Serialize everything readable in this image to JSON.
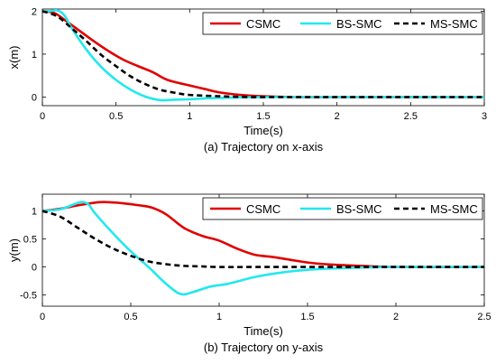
{
  "chart_data": [
    {
      "type": "line",
      "caption": "(a) Trajectory on x-axis",
      "xlabel": "Time(s)",
      "ylabel": "x(m)",
      "xlim": [
        0,
        3
      ],
      "ylim": [
        -0.2,
        2.05
      ],
      "xticks": [
        "0",
        "0.5",
        "1",
        "1.5",
        "2",
        "2.5",
        "3"
      ],
      "xtick_values": [
        0,
        0.5,
        1,
        1.5,
        2,
        2.5,
        3
      ],
      "yticks": [
        "0",
        "1",
        "2"
      ],
      "ytick_values": [
        0,
        1,
        2
      ],
      "grid": false,
      "legend_placement": "top-right-horizontal",
      "series": [
        {
          "name": "CSMC",
          "color": "#e00000",
          "style": "solid",
          "x": [
            0,
            0.08,
            0.15,
            0.25,
            0.35,
            0.45,
            0.55,
            0.65,
            0.75,
            0.85,
            1.0,
            1.1,
            1.2,
            1.35,
            1.5,
            1.7,
            2.0,
            2.5,
            3.0
          ],
          "y": [
            2.0,
            1.96,
            1.8,
            1.55,
            1.3,
            1.07,
            0.87,
            0.72,
            0.58,
            0.4,
            0.27,
            0.19,
            0.11,
            0.05,
            0.02,
            0.0,
            0.0,
            0.0,
            0.0
          ]
        },
        {
          "name": "BS-SMC",
          "color": "#22e8ee",
          "style": "solid",
          "x": [
            0,
            0.05,
            0.1,
            0.15,
            0.2,
            0.3,
            0.4,
            0.5,
            0.6,
            0.7,
            0.8,
            0.9,
            1.0,
            1.1,
            1.2,
            1.3,
            1.5,
            2.0,
            3.0
          ],
          "y": [
            2.0,
            2.0,
            2.02,
            1.9,
            1.6,
            1.1,
            0.7,
            0.4,
            0.17,
            0.01,
            -0.07,
            -0.06,
            -0.05,
            -0.03,
            -0.02,
            -0.01,
            0.0,
            0.0,
            0.0
          ]
        },
        {
          "name": "MS-SMC",
          "color": "#000000",
          "style": "dashed",
          "x": [
            0,
            0.1,
            0.2,
            0.3,
            0.4,
            0.5,
            0.6,
            0.7,
            0.8,
            0.9,
            1.0,
            1.2,
            1.4,
            1.6,
            2.0,
            3.0
          ],
          "y": [
            2.0,
            1.88,
            1.6,
            1.3,
            0.98,
            0.72,
            0.48,
            0.3,
            0.17,
            0.1,
            0.05,
            0.02,
            0.0,
            0.0,
            0.0,
            0.0
          ]
        }
      ]
    },
    {
      "type": "line",
      "caption": "(b) Trajectory on y-axis",
      "xlabel": "Time(s)",
      "ylabel": "y(m)",
      "xlim": [
        0,
        2.5
      ],
      "ylim": [
        -0.7,
        1.3
      ],
      "xticks": [
        "0",
        "0.5",
        "1",
        "1.5",
        "2",
        "2.5"
      ],
      "xtick_values": [
        0,
        0.5,
        1,
        1.5,
        2,
        2.5
      ],
      "yticks": [
        "-0.5",
        "0",
        "0.5",
        "1"
      ],
      "ytick_values": [
        -0.5,
        0,
        0.5,
        1
      ],
      "grid": false,
      "legend_placement": "top-right-horizontal",
      "series": [
        {
          "name": "CSMC",
          "color": "#e00000",
          "style": "solid",
          "x": [
            0,
            0.1,
            0.2,
            0.3,
            0.35,
            0.45,
            0.55,
            0.62,
            0.7,
            0.8,
            0.9,
            1.0,
            1.1,
            1.2,
            1.3,
            1.4,
            1.5,
            1.6,
            1.8,
            2.0,
            2.5
          ],
          "y": [
            1.0,
            1.04,
            1.1,
            1.15,
            1.16,
            1.14,
            1.1,
            1.06,
            0.94,
            0.7,
            0.56,
            0.47,
            0.33,
            0.22,
            0.18,
            0.13,
            0.08,
            0.05,
            0.02,
            0.0,
            0.0
          ]
        },
        {
          "name": "BS-SMC",
          "color": "#22e8ee",
          "style": "solid",
          "x": [
            0,
            0.1,
            0.18,
            0.22,
            0.26,
            0.3,
            0.4,
            0.5,
            0.6,
            0.7,
            0.78,
            0.85,
            0.95,
            1.05,
            1.2,
            1.35,
            1.5,
            1.7,
            2.0,
            2.5
          ],
          "y": [
            1.0,
            1.03,
            1.12,
            1.16,
            1.12,
            0.95,
            0.6,
            0.28,
            0.0,
            -0.3,
            -0.48,
            -0.45,
            -0.35,
            -0.3,
            -0.18,
            -0.1,
            -0.05,
            -0.02,
            0.0,
            0.0
          ]
        },
        {
          "name": "MS-SMC",
          "color": "#000000",
          "style": "dashed",
          "x": [
            0,
            0.1,
            0.2,
            0.3,
            0.4,
            0.5,
            0.6,
            0.7,
            0.8,
            0.9,
            1.0,
            1.2,
            1.5,
            2.0,
            2.5
          ],
          "y": [
            1.0,
            0.9,
            0.7,
            0.5,
            0.33,
            0.2,
            0.1,
            0.05,
            0.02,
            0.01,
            0.0,
            0.0,
            0.0,
            0.0,
            0.0
          ]
        }
      ]
    }
  ]
}
